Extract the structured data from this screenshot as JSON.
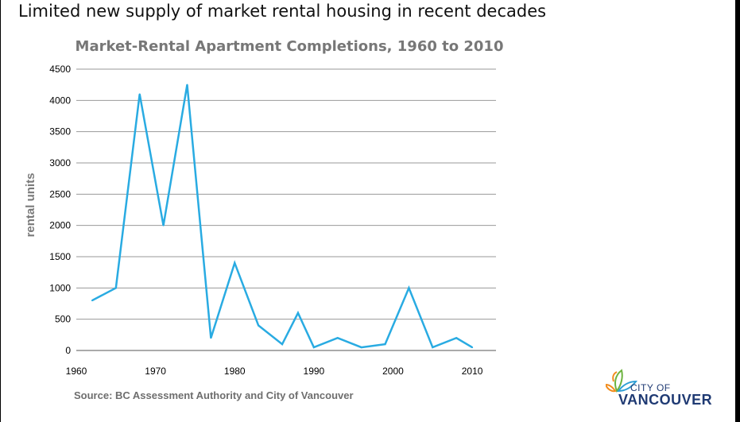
{
  "slide": {
    "title": "Limited new supply of market rental housing in recent decades"
  },
  "source": "Source: BC Assessment Authority and City of Vancouver",
  "logo": {
    "line1": "CITY OF",
    "line2": "VANCOUVER",
    "colors": [
      "#f28c1c",
      "#6db33f",
      "#2e9fd5",
      "#1f3a73"
    ]
  },
  "chart_data": {
    "type": "line",
    "title": "Market-Rental Apartment Completions, 1960 to 2010",
    "xlabel": "",
    "ylabel": "rental units",
    "xlim": [
      1960,
      2013
    ],
    "ylim": [
      0,
      4500
    ],
    "xticks": [
      1960,
      1970,
      1980,
      1990,
      2000,
      2010
    ],
    "yticks": [
      0,
      500,
      1000,
      1500,
      2000,
      2500,
      3000,
      3500,
      4000,
      4500
    ],
    "grid": "horizontal",
    "line_color": "#29abe2",
    "series": [
      {
        "x": [
          1962,
          1965,
          1968,
          1971,
          1974,
          1977,
          1980,
          1983,
          1986,
          1988,
          1990,
          1993,
          1996,
          1999,
          2002,
          2005,
          2008,
          2010
        ],
        "values": [
          800,
          1000,
          4100,
          2000,
          4250,
          200,
          1400,
          400,
          100,
          600,
          50,
          200,
          50,
          100,
          1000,
          50,
          200,
          50
        ]
      }
    ]
  }
}
